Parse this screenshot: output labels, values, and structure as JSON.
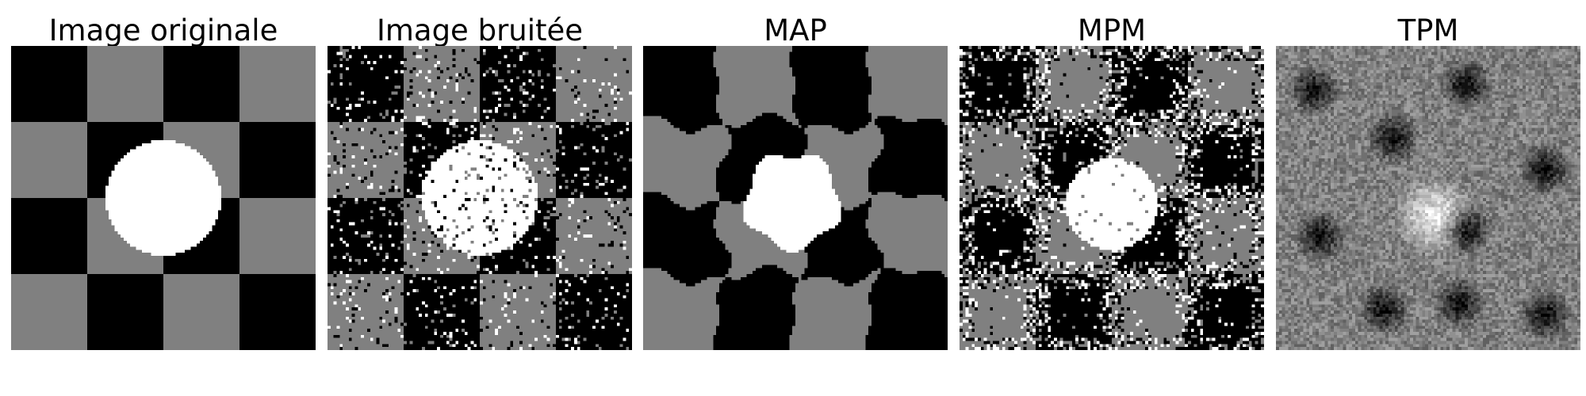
{
  "panels": [
    {
      "title": "Image originale",
      "image": "original-image"
    },
    {
      "title": "Image bruitée",
      "image": "noisy-image"
    },
    {
      "title": "MAP",
      "image": "map-segmentation-image"
    },
    {
      "title": "MPM",
      "image": "mpm-segmentation-image"
    },
    {
      "title": "TPM",
      "image": "tpm-marginal-image"
    }
  ],
  "colors": {
    "black": "#000000",
    "gray": "#808080",
    "white": "#ffffff"
  }
}
